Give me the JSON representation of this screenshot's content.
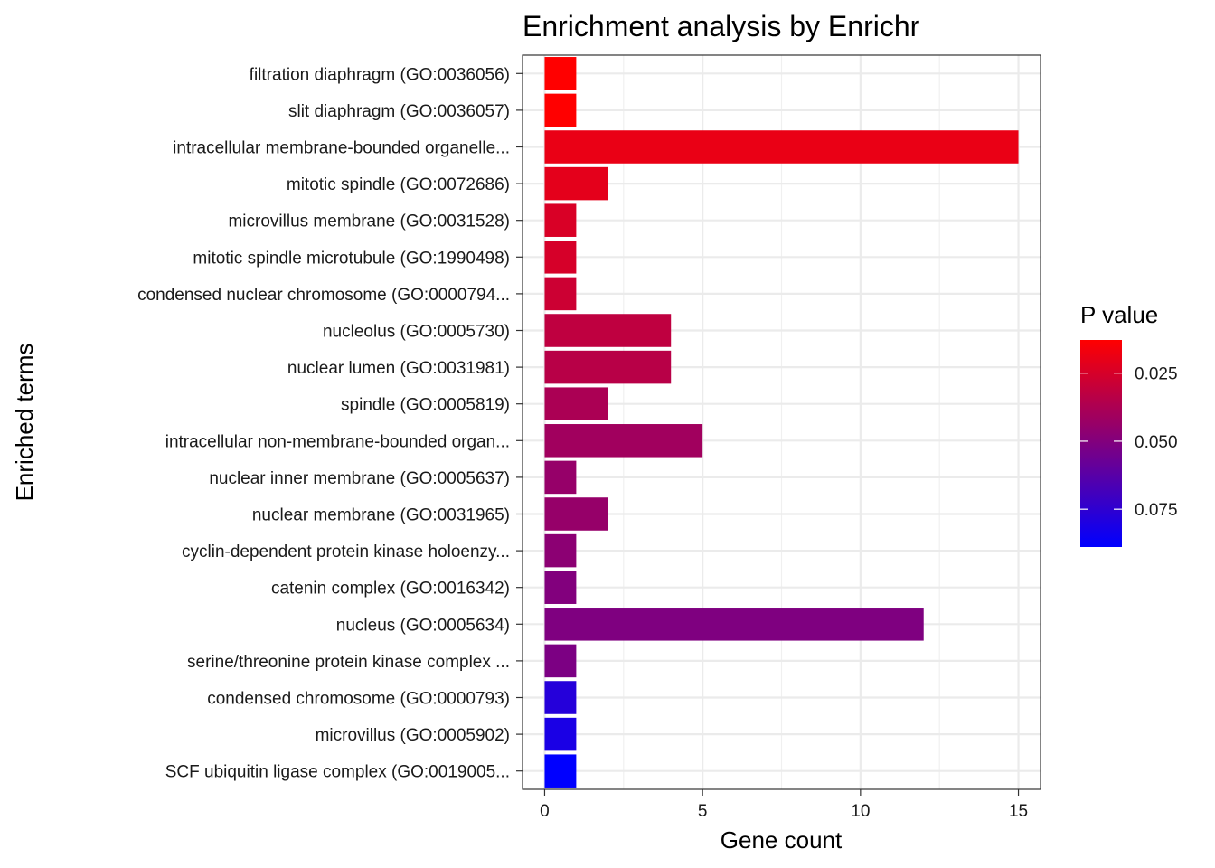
{
  "chart_data": {
    "type": "bar",
    "orientation": "horizontal",
    "title": "Enrichment analysis by Enrichr",
    "xlabel": "Gene count",
    "ylabel": "Enriched terms",
    "xlim": [
      -0.7,
      15.7
    ],
    "xticks": [
      0,
      5,
      10,
      15
    ],
    "grid": true,
    "legend": {
      "title": "P value",
      "position": "right",
      "type": "colorbar",
      "range": [
        0.0128,
        0.0889
      ],
      "ticks": [
        0.025,
        0.05,
        0.075
      ],
      "tick_labels": [
        "0.025",
        "0.050",
        "0.075"
      ],
      "color_low": "#ff0000",
      "color_high": "#0000ff"
    },
    "categories": [
      "filtration diaphragm (GO:0036056)",
      "slit diaphragm (GO:0036057)",
      "intracellular membrane-bounded organelle...",
      "mitotic spindle (GO:0072686)",
      "microvillus membrane (GO:0031528)",
      "mitotic spindle microtubule (GO:1990498)",
      "condensed nuclear chromosome (GO:0000794...",
      "nucleolus (GO:0005730)",
      "nuclear lumen (GO:0031981)",
      "spindle (GO:0005819)",
      "intracellular non-membrane-bounded organ...",
      "nuclear inner membrane (GO:0005637)",
      "nuclear membrane (GO:0031965)",
      "cyclin-dependent protein kinase holoenzy...",
      "catenin complex (GO:0016342)",
      "nucleus (GO:0005634)",
      "serine/threonine protein kinase complex ...",
      "condensed chromosome (GO:0000793)",
      "microvillus (GO:0005902)",
      "SCF ubiquitin ligase complex (GO:0019005..."
    ],
    "values": [
      1,
      1,
      15,
      2,
      1,
      1,
      1,
      4,
      4,
      2,
      5,
      1,
      2,
      1,
      1,
      12,
      1,
      1,
      1,
      1
    ],
    "pvalues": [
      0.0128,
      0.0128,
      0.019,
      0.021,
      0.024,
      0.025,
      0.028,
      0.032,
      0.034,
      0.038,
      0.041,
      0.044,
      0.044,
      0.047,
      0.05,
      0.051,
      0.052,
      0.078,
      0.081,
      0.0889
    ]
  }
}
